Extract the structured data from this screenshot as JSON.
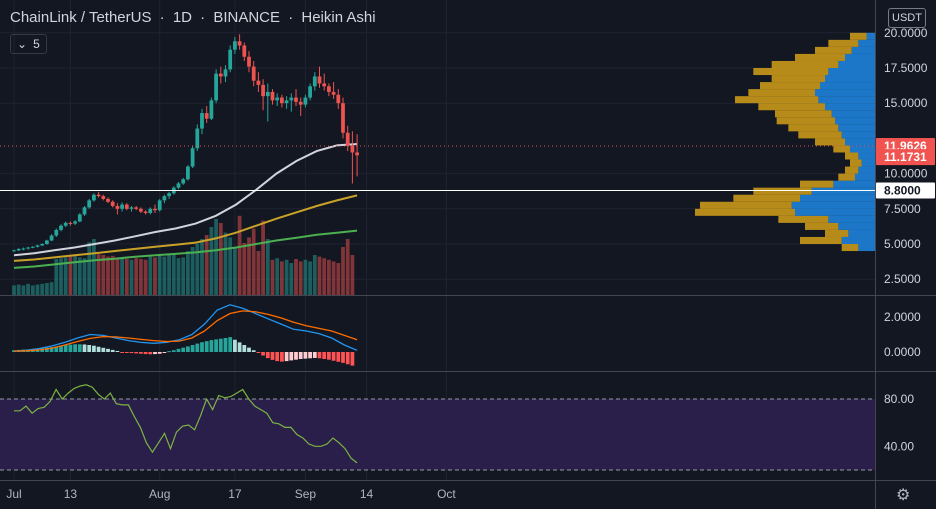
{
  "header": {
    "symbol": "ChainLink / TetherUS",
    "interval": "1D",
    "exchange": "BINANCE",
    "chart_style": "Heikin Ashi"
  },
  "indicators_toggle": {
    "count": "5"
  },
  "currency": "USDT",
  "price_badges": [
    {
      "value": "11.9626",
      "color": "#f05350"
    },
    {
      "value": "11.1731",
      "color": "#f05350"
    },
    {
      "value": "8.8000",
      "color": "#ffffff"
    }
  ],
  "colors": {
    "background": "#131722",
    "up": "#26a69a",
    "down": "#ef5350",
    "ma_white": "#d1d4dc",
    "ma_yellow": "#c9a227",
    "ma_green": "#4caf50",
    "macd_line": "#2196f3",
    "signal_line": "#ff6d00",
    "rsi_line": "#7cb342",
    "rsi_band": "#2a1f4a",
    "vp_up": "#1e88e5",
    "vp_down": "#d4a017"
  },
  "chart_data": [
    {
      "type": "candlestick",
      "title": "ChainLink / TetherUS 1D BINANCE Heikin Ashi",
      "xlabel": "",
      "ylabel": "",
      "ylim": [
        2.0,
        20.5
      ],
      "y_ticks": [
        "20.0000",
        "17.5000",
        "15.0000",
        "10.0000",
        "7.5000",
        "5.0000",
        "2.5000"
      ],
      "x_ticks": [
        "Jul",
        "13",
        "Aug",
        "17",
        "Sep",
        "14",
        "Oct"
      ],
      "grid": true,
      "start_date": "2020-07-01",
      "candles": [
        [
          4.5,
          4.6,
          4.45,
          4.55
        ],
        [
          4.55,
          4.7,
          4.5,
          4.65
        ],
        [
          4.65,
          4.75,
          4.55,
          4.68
        ],
        [
          4.68,
          4.8,
          4.6,
          4.75
        ],
        [
          4.75,
          4.85,
          4.7,
          4.8
        ],
        [
          4.8,
          4.95,
          4.75,
          4.9
        ],
        [
          4.9,
          5.05,
          4.85,
          5.0
        ],
        [
          5.0,
          5.3,
          4.95,
          5.25
        ],
        [
          5.25,
          5.7,
          5.2,
          5.6
        ],
        [
          5.6,
          6.1,
          5.5,
          6.0
        ],
        [
          6.0,
          6.4,
          5.9,
          6.3
        ],
        [
          6.3,
          6.6,
          6.2,
          6.5
        ],
        [
          6.5,
          6.6,
          6.3,
          6.45
        ],
        [
          6.45,
          6.7,
          6.35,
          6.6
        ],
        [
          6.6,
          7.2,
          6.55,
          7.1
        ],
        [
          7.1,
          7.7,
          7.0,
          7.6
        ],
        [
          7.6,
          8.2,
          7.5,
          8.1
        ],
        [
          8.1,
          8.6,
          8.0,
          8.5
        ],
        [
          8.5,
          8.7,
          8.3,
          8.4
        ],
        [
          8.4,
          8.5,
          8.1,
          8.2
        ],
        [
          8.2,
          8.3,
          7.9,
          8.0
        ],
        [
          8.0,
          8.1,
          7.6,
          7.7
        ],
        [
          7.7,
          7.9,
          7.1,
          7.5
        ],
        [
          7.5,
          7.95,
          7.3,
          7.8
        ],
        [
          7.8,
          7.9,
          7.4,
          7.5
        ],
        [
          7.5,
          7.7,
          7.3,
          7.6
        ],
        [
          7.6,
          7.7,
          7.4,
          7.5
        ],
        [
          7.5,
          7.6,
          7.2,
          7.3
        ],
        [
          7.3,
          7.4,
          7.1,
          7.2
        ],
        [
          7.2,
          7.6,
          7.1,
          7.5
        ],
        [
          7.5,
          7.8,
          7.2,
          7.4
        ],
        [
          7.4,
          8.2,
          7.3,
          8.1
        ],
        [
          8.1,
          8.5,
          7.9,
          8.4
        ],
        [
          8.4,
          8.7,
          8.2,
          8.6
        ],
        [
          8.6,
          9.1,
          8.5,
          9.0
        ],
        [
          9.0,
          9.4,
          8.9,
          9.3
        ],
        [
          9.3,
          9.7,
          9.2,
          9.6
        ],
        [
          9.6,
          10.6,
          9.5,
          10.5
        ],
        [
          10.5,
          12.0,
          10.4,
          11.8
        ],
        [
          11.8,
          13.5,
          11.6,
          13.2
        ],
        [
          13.2,
          14.6,
          12.8,
          14.3
        ],
        [
          14.3,
          14.8,
          13.6,
          13.9
        ],
        [
          13.9,
          15.4,
          13.8,
          15.2
        ],
        [
          15.2,
          17.4,
          15.0,
          17.1
        ],
        [
          17.1,
          17.6,
          16.4,
          16.9
        ],
        [
          16.9,
          17.7,
          16.5,
          17.4
        ],
        [
          17.4,
          19.1,
          17.2,
          18.8
        ],
        [
          18.8,
          19.7,
          18.5,
          19.4
        ],
        [
          19.4,
          19.9,
          18.8,
          19.1
        ],
        [
          19.1,
          19.3,
          18.0,
          18.3
        ],
        [
          18.3,
          18.7,
          17.2,
          17.6
        ],
        [
          17.6,
          18.0,
          16.2,
          16.6
        ],
        [
          16.6,
          17.2,
          15.8,
          16.3
        ],
        [
          16.3,
          16.7,
          14.5,
          15.5
        ],
        [
          15.5,
          16.4,
          13.7,
          15.8
        ],
        [
          15.8,
          16.0,
          14.9,
          15.2
        ],
        [
          15.2,
          15.7,
          14.8,
          15.4
        ],
        [
          15.4,
          15.6,
          14.7,
          15.0
        ],
        [
          15.0,
          15.5,
          14.6,
          15.2
        ],
        [
          15.2,
          15.7,
          14.4,
          15.4
        ],
        [
          15.4,
          16.0,
          14.8,
          15.1
        ],
        [
          15.1,
          15.4,
          14.1,
          14.9
        ],
        [
          14.9,
          15.6,
          14.7,
          15.4
        ],
        [
          15.4,
          16.4,
          15.2,
          16.2
        ],
        [
          16.2,
          17.2,
          15.9,
          16.9
        ],
        [
          16.9,
          17.6,
          16.1,
          16.4
        ],
        [
          16.4,
          17.1,
          15.9,
          16.2
        ],
        [
          16.2,
          16.4,
          15.5,
          15.8
        ],
        [
          15.8,
          16.5,
          15.3,
          15.6
        ],
        [
          15.6,
          16.0,
          14.6,
          15.0
        ],
        [
          15.0,
          15.4,
          12.5,
          12.9
        ],
        [
          12.9,
          13.4,
          11.6,
          12.0
        ],
        [
          12.0,
          13.0,
          9.3,
          11.5
        ],
        [
          11.5,
          12.8,
          9.8,
          11.3
        ]
      ],
      "volume": [
        0.12,
        0.13,
        0.12,
        0.14,
        0.12,
        0.13,
        0.14,
        0.15,
        0.16,
        0.45,
        0.46,
        0.47,
        0.48,
        0.49,
        0.47,
        0.46,
        0.66,
        0.7,
        0.51,
        0.5,
        0.48,
        0.49,
        0.47,
        0.46,
        0.45,
        0.44,
        0.46,
        0.45,
        0.44,
        0.48,
        0.47,
        0.49,
        0.48,
        0.5,
        0.52,
        0.46,
        0.47,
        0.55,
        0.6,
        0.64,
        0.7,
        0.75,
        0.85,
        0.95,
        0.9,
        0.78,
        0.72,
        0.6,
        0.99,
        0.65,
        0.72,
        0.83,
        0.55,
        0.93,
        0.7,
        0.44,
        0.46,
        0.42,
        0.44,
        0.4,
        0.45,
        0.42,
        0.44,
        0.42,
        0.5,
        0.48,
        0.46,
        0.44,
        0.42,
        0.4,
        0.6,
        0.7,
        0.5
      ],
      "moving_averages": [
        {
          "color": "#d1d4dc",
          "values": [
            4.2,
            4.35,
            4.55,
            4.75,
            5.0,
            5.25,
            5.55,
            5.85,
            6.1,
            6.45,
            7.0,
            7.8,
            8.85,
            10.0,
            10.9,
            11.6,
            12.0,
            12.1
          ]
        },
        {
          "color": "#c9a227",
          "values": [
            3.8,
            3.9,
            4.05,
            4.2,
            4.35,
            4.5,
            4.65,
            4.8,
            4.95,
            5.1,
            5.4,
            5.8,
            6.3,
            6.8,
            7.25,
            7.7,
            8.1,
            8.45
          ]
        },
        {
          "color": "#4caf50",
          "values": [
            3.3,
            3.4,
            3.55,
            3.7,
            3.85,
            3.95,
            4.1,
            4.2,
            4.3,
            4.4,
            4.55,
            4.75,
            5.0,
            5.25,
            5.45,
            5.65,
            5.8,
            5.95
          ]
        }
      ],
      "volume_profile": {
        "price_bins": [
          4.75,
          5.25,
          5.75,
          6.25,
          6.75,
          7.25,
          7.75,
          8.25,
          8.75,
          9.25,
          9.75,
          10.25,
          10.75,
          11.25,
          11.75,
          12.25,
          12.75,
          13.25,
          13.75,
          14.25,
          14.75,
          15.25,
          15.75,
          16.25,
          16.75,
          17.25,
          17.75,
          18.25,
          18.75,
          19.25,
          19.75
        ],
        "up": [
          0.1,
          0.2,
          0.16,
          0.22,
          0.28,
          0.48,
          0.5,
          0.45,
          0.38,
          0.25,
          0.12,
          0.1,
          0.08,
          0.1,
          0.15,
          0.18,
          0.2,
          0.22,
          0.24,
          0.26,
          0.3,
          0.34,
          0.36,
          0.33,
          0.3,
          0.28,
          0.22,
          0.18,
          0.14,
          0.1,
          0.05
        ],
        "down": [
          0.1,
          0.25,
          0.14,
          0.2,
          0.3,
          0.6,
          0.55,
          0.4,
          0.35,
          0.2,
          0.1,
          0.08,
          0.07,
          0.08,
          0.1,
          0.18,
          0.26,
          0.3,
          0.35,
          0.34,
          0.4,
          0.5,
          0.4,
          0.36,
          0.32,
          0.45,
          0.4,
          0.3,
          0.22,
          0.18,
          0.1
        ]
      },
      "price_lines": [
        {
          "value": 11.9626,
          "color": "#f05350",
          "dotted": true
        },
        {
          "value": 8.8,
          "color": "#ffffff",
          "dotted": false
        }
      ]
    },
    {
      "type": "macd",
      "ylim": [
        -1.1,
        3.4
      ],
      "y_ticks": [
        "2.0000",
        "0.0000"
      ],
      "macd": [
        0.05,
        0.1,
        0.2,
        0.35,
        0.55,
        0.8,
        1.0,
        0.95,
        0.8,
        0.65,
        0.55,
        0.5,
        0.55,
        0.7,
        1.0,
        1.6,
        2.4,
        2.7,
        2.5,
        2.2,
        1.9,
        1.6,
        1.3,
        1.2,
        1.05,
        0.8,
        0.4,
        0.1
      ],
      "signal": [
        0.05,
        0.07,
        0.12,
        0.22,
        0.4,
        0.6,
        0.78,
        0.88,
        0.86,
        0.8,
        0.72,
        0.65,
        0.6,
        0.62,
        0.8,
        1.2,
        1.8,
        2.2,
        2.35,
        2.3,
        2.15,
        1.95,
        1.7,
        1.5,
        1.35,
        1.2,
        0.95,
        0.7
      ],
      "histogram": [
        0.1,
        0.12,
        0.14,
        0.15,
        0.18,
        0.2,
        0.22,
        0.25,
        0.28,
        0.32,
        0.36,
        0.4,
        0.42,
        0.44,
        0.44,
        0.43,
        0.4,
        0.36,
        0.3,
        0.24,
        0.18,
        0.12,
        0.06,
        -0.02,
        -0.04,
        -0.06,
        -0.08,
        -0.1,
        -0.12,
        -0.13,
        -0.12,
        -0.1,
        -0.05,
        0.05,
        0.1,
        0.18,
        0.25,
        0.32,
        0.4,
        0.48,
        0.56,
        0.62,
        0.68,
        0.72,
        0.76,
        0.8,
        0.85,
        0.7,
        0.55,
        0.4,
        0.25,
        0.1,
        -0.05,
        -0.2,
        -0.35,
        -0.45,
        -0.52,
        -0.55,
        -0.52,
        -0.48,
        -0.44,
        -0.4,
        -0.38,
        -0.36,
        -0.34,
        -0.36,
        -0.4,
        -0.44,
        -0.5,
        -0.56,
        -0.62,
        -0.7,
        -0.78
      ]
    },
    {
      "type": "rsi",
      "ylim": [
        10,
        100
      ],
      "y_ticks": [
        "80.00",
        "40.00"
      ],
      "band": [
        20,
        80
      ],
      "values": [
        70,
        70,
        74,
        68,
        72,
        73,
        78,
        88,
        80,
        85,
        89,
        91,
        92,
        90,
        84,
        80,
        85,
        76,
        75,
        75,
        65,
        56,
        43,
        35,
        43,
        51,
        38,
        52,
        57,
        58,
        54,
        66,
        80,
        71,
        83,
        81,
        82,
        85,
        88,
        80,
        74,
        71,
        68,
        60,
        59,
        56,
        56,
        50,
        47,
        42,
        40,
        40,
        42,
        47,
        43,
        38,
        30,
        26
      ]
    }
  ]
}
